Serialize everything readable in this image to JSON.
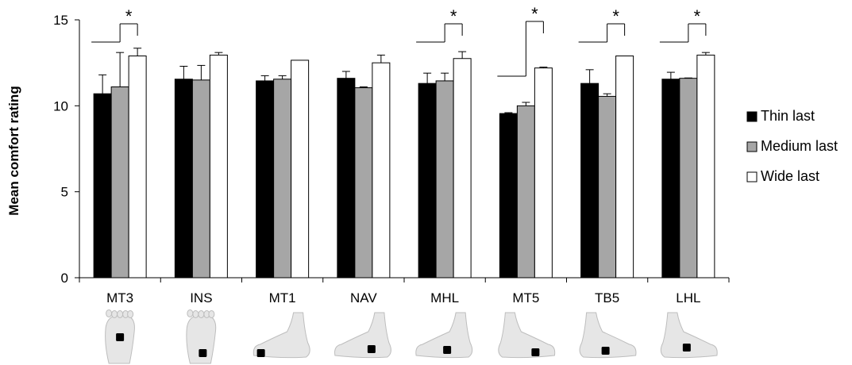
{
  "chart_data": {
    "type": "bar",
    "ylabel": "Mean comfort rating",
    "xlabel": "",
    "ylim": [
      0,
      15
    ],
    "yticks": [
      0,
      5,
      10,
      15
    ],
    "categories": [
      "MT3",
      "INS",
      "MT1",
      "NAV",
      "MHL",
      "MT5",
      "TB5",
      "LHL"
    ],
    "series": [
      {
        "name": "Thin last",
        "color": "#000000",
        "values": [
          10.7,
          11.55,
          11.45,
          11.6,
          11.3,
          9.55,
          11.3,
          11.55
        ],
        "errors": [
          1.1,
          0.75,
          0.3,
          0.4,
          0.6,
          0.05,
          0.8,
          0.4
        ]
      },
      {
        "name": "Medium last",
        "color": "#a6a6a6",
        "values": [
          11.1,
          11.5,
          11.55,
          11.05,
          11.45,
          10.0,
          10.55,
          11.6
        ],
        "errors": [
          2.0,
          0.85,
          0.2,
          0.05,
          0.45,
          0.2,
          0.15,
          0.02
        ]
      },
      {
        "name": "Wide last",
        "color": "#ffffff",
        "values": [
          12.9,
          12.95,
          12.65,
          12.5,
          12.75,
          12.2,
          12.9,
          12.95
        ],
        "errors": [
          0.45,
          0.15,
          0.0,
          0.45,
          0.4,
          0.05,
          0.0,
          0.15
        ]
      }
    ],
    "significance": [
      {
        "category": "MT3",
        "label": "*"
      },
      {
        "category": "MHL",
        "label": "*"
      },
      {
        "category": "MT5",
        "label": "*"
      },
      {
        "category": "TB5",
        "label": "*"
      },
      {
        "category": "LHL",
        "label": "*"
      }
    ],
    "legend_position": "right",
    "grid": false,
    "foot_icons": [
      {
        "category": "MT3",
        "view": "foot-plantar-view-icon"
      },
      {
        "category": "INS",
        "view": "foot-plantar-view-icon"
      },
      {
        "category": "MT1",
        "view": "foot-medial-view-icon"
      },
      {
        "category": "NAV",
        "view": "foot-medial-view-icon"
      },
      {
        "category": "MHL",
        "view": "foot-medial-view-icon"
      },
      {
        "category": "MT5",
        "view": "foot-lateral-view-icon"
      },
      {
        "category": "TB5",
        "view": "foot-lateral-view-icon"
      },
      {
        "category": "LHL",
        "view": "foot-lateral-view-icon"
      }
    ]
  }
}
